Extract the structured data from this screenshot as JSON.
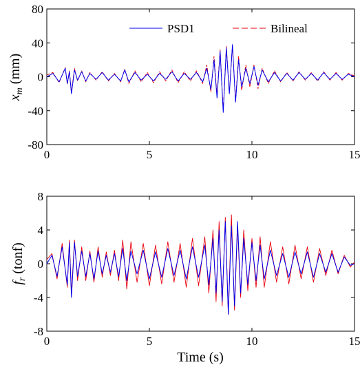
{
  "chart_data": [
    {
      "type": "line",
      "id": "top",
      "ylabel_main": "x",
      "ylabel_sub": "m",
      "ylabel_unit": " (mm)",
      "xlim": [
        0,
        15
      ],
      "ylim": [
        -80,
        80
      ],
      "xticks": [
        0,
        5,
        10,
        15
      ],
      "yticks": [
        -80,
        -40,
        0,
        40,
        80
      ],
      "xtick_labels": [
        "0",
        "5",
        "10",
        "15"
      ],
      "ytick_labels": [
        "-80",
        "-40",
        "0",
        "40",
        "80"
      ],
      "legend_position": "top-right",
      "series": [
        {
          "name": "PSD1",
          "color": "#0000ee",
          "style": "solid",
          "x": [
            0,
            0.3,
            0.6,
            0.9,
            1.0,
            1.1,
            1.2,
            1.35,
            1.5,
            1.7,
            1.9,
            2.1,
            2.4,
            2.7,
            3.0,
            3.3,
            3.6,
            3.8,
            4.0,
            4.3,
            4.6,
            4.9,
            5.2,
            5.5,
            5.8,
            6.1,
            6.4,
            6.7,
            7.0,
            7.3,
            7.6,
            7.8,
            8.0,
            8.15,
            8.3,
            8.45,
            8.6,
            8.75,
            8.9,
            9.05,
            9.2,
            9.35,
            9.5,
            9.7,
            9.9,
            10.1,
            10.3,
            10.5,
            10.8,
            11.1,
            11.4,
            11.7,
            12.0,
            12.3,
            12.6,
            12.9,
            13.2,
            13.5,
            13.8,
            14.1,
            14.4,
            14.7,
            15.0
          ],
          "y": [
            0,
            4,
            -6,
            10,
            -8,
            6,
            -20,
            8,
            -4,
            6,
            -5,
            4,
            -3,
            5,
            -4,
            3,
            -5,
            8,
            -6,
            5,
            -4,
            3,
            -5,
            4,
            -3,
            6,
            -5,
            4,
            -3,
            5,
            -6,
            10,
            -15,
            20,
            -25,
            30,
            -42,
            34,
            -20,
            38,
            -30,
            20,
            -12,
            10,
            -8,
            12,
            -10,
            8,
            -6,
            5,
            -5,
            4,
            -4,
            5,
            -3,
            4,
            -4,
            5,
            -3,
            4,
            -3,
            3,
            0
          ]
        },
        {
          "name": "Bilineal",
          "color": "#e8000b",
          "style": "dashed",
          "x": [
            0,
            0.3,
            0.6,
            0.9,
            1.0,
            1.1,
            1.2,
            1.35,
            1.5,
            1.7,
            1.9,
            2.1,
            2.4,
            2.7,
            3.0,
            3.3,
            3.6,
            3.8,
            4.0,
            4.3,
            4.6,
            4.9,
            5.2,
            5.5,
            5.8,
            6.1,
            6.4,
            6.7,
            7.0,
            7.3,
            7.6,
            7.8,
            8.0,
            8.15,
            8.3,
            8.45,
            8.6,
            8.75,
            8.9,
            9.05,
            9.2,
            9.35,
            9.5,
            9.7,
            9.9,
            10.1,
            10.3,
            10.5,
            10.8,
            11.1,
            11.4,
            11.7,
            12.0,
            12.3,
            12.6,
            12.9,
            13.2,
            13.5,
            13.8,
            14.1,
            14.4,
            14.7,
            15.0
          ],
          "y": [
            2,
            5,
            -7,
            11,
            -9,
            7,
            -18,
            10,
            -5,
            7,
            -6,
            5,
            -4,
            6,
            -5,
            4,
            -6,
            9,
            -8,
            7,
            -6,
            5,
            -7,
            6,
            -5,
            8,
            -7,
            6,
            -5,
            7,
            -8,
            14,
            -18,
            24,
            -22,
            32,
            -40,
            36,
            -18,
            36,
            -28,
            24,
            -16,
            14,
            -12,
            14,
            -14,
            10,
            -8,
            7,
            -6,
            5,
            -5,
            6,
            -4,
            5,
            -5,
            6,
            -4,
            5,
            -4,
            4,
            1
          ]
        }
      ]
    },
    {
      "type": "line",
      "id": "bottom",
      "ylabel_main": "f",
      "ylabel_sub": "r",
      "ylabel_unit": " (tonf)",
      "xlabel": "Time (s)",
      "xlim": [
        0,
        15
      ],
      "ylim": [
        -8,
        8
      ],
      "xticks": [
        0,
        5,
        10,
        15
      ],
      "yticks": [
        -8,
        -4,
        0,
        4,
        8
      ],
      "xtick_labels": [
        "0",
        "5",
        "10",
        "15"
      ],
      "ytick_labels": [
        "-8",
        "-4",
        "0",
        "4",
        "8"
      ],
      "series": [
        {
          "name": "PSD1",
          "color": "#0000ee",
          "style": "solid",
          "x": [
            0,
            0.25,
            0.5,
            0.75,
            1.0,
            1.1,
            1.2,
            1.35,
            1.5,
            1.7,
            1.9,
            2.1,
            2.3,
            2.5,
            2.7,
            2.9,
            3.1,
            3.3,
            3.5,
            3.7,
            3.9,
            4.1,
            4.4,
            4.7,
            5.0,
            5.3,
            5.6,
            5.9,
            6.2,
            6.5,
            6.8,
            7.1,
            7.4,
            7.7,
            7.9,
            8.1,
            8.25,
            8.4,
            8.55,
            8.7,
            8.85,
            9.0,
            9.15,
            9.3,
            9.45,
            9.6,
            9.8,
            10.0,
            10.2,
            10.4,
            10.6,
            10.9,
            11.2,
            11.5,
            11.8,
            12.1,
            12.4,
            12.7,
            13.0,
            13.3,
            13.6,
            13.9,
            14.2,
            14.5,
            14.8,
            15.0
          ],
          "y": [
            0,
            1,
            -1.5,
            2,
            -2.5,
            2.5,
            -4,
            2.5,
            -1.5,
            1.5,
            -1.5,
            1.2,
            -1.8,
            1.5,
            -1.2,
            1,
            -1,
            1.2,
            -1.5,
            1.8,
            -2,
            1.5,
            -1.2,
            1.6,
            -1.8,
            1.4,
            -1.6,
            1.8,
            -1.4,
            1.6,
            -1.8,
            2,
            -1.6,
            2.2,
            -2.5,
            3,
            -3.5,
            4,
            -4.5,
            5,
            -6,
            4.5,
            -5,
            5,
            -3.5,
            3,
            -2.5,
            2.5,
            -2,
            2.2,
            -1.8,
            1.6,
            -1.4,
            1.2,
            -1.6,
            1.4,
            -1.2,
            1.4,
            -1.6,
            1.2,
            -1,
            1.2,
            -1,
            0.8,
            -0.2,
            0
          ]
        },
        {
          "name": "Bilineal",
          "color": "#e8000b",
          "style": "solid",
          "x": [
            0,
            0.25,
            0.5,
            0.75,
            1.0,
            1.1,
            1.2,
            1.35,
            1.5,
            1.7,
            1.9,
            2.1,
            2.3,
            2.5,
            2.7,
            2.9,
            3.1,
            3.3,
            3.5,
            3.7,
            3.9,
            4.1,
            4.4,
            4.7,
            5.0,
            5.3,
            5.6,
            5.9,
            6.2,
            6.5,
            6.8,
            7.1,
            7.4,
            7.7,
            7.9,
            8.1,
            8.25,
            8.4,
            8.55,
            8.7,
            8.85,
            9.0,
            9.15,
            9.3,
            9.45,
            9.6,
            9.8,
            10.0,
            10.2,
            10.4,
            10.6,
            10.9,
            11.2,
            11.5,
            11.8,
            12.1,
            12.4,
            12.7,
            13.0,
            13.3,
            13.6,
            13.9,
            14.2,
            14.5,
            14.8,
            15.0
          ],
          "y": [
            0.5,
            1.2,
            -1.8,
            2.4,
            -2.8,
            2.8,
            -3.6,
            2.8,
            -2,
            2,
            -2,
            1.5,
            -2.2,
            2,
            -1.6,
            1.4,
            -1.4,
            1.6,
            -2,
            2.8,
            -3,
            2.6,
            -2.2,
            2.4,
            -2.6,
            2.2,
            -2.4,
            2.6,
            -2.2,
            2.4,
            -2.8,
            3,
            -2.6,
            3.2,
            -3.5,
            4,
            -4.5,
            5,
            -5,
            5.5,
            -6,
            5.8,
            -5.5,
            4.5,
            -4,
            4,
            -3.2,
            3,
            -2.8,
            3.2,
            -2.8,
            2.6,
            -2.2,
            2,
            -2.4,
            2.2,
            -1.8,
            2,
            -2.2,
            1.8,
            -1.4,
            1.6,
            -1.2,
            1,
            -0.4,
            0.2
          ]
        }
      ]
    }
  ]
}
